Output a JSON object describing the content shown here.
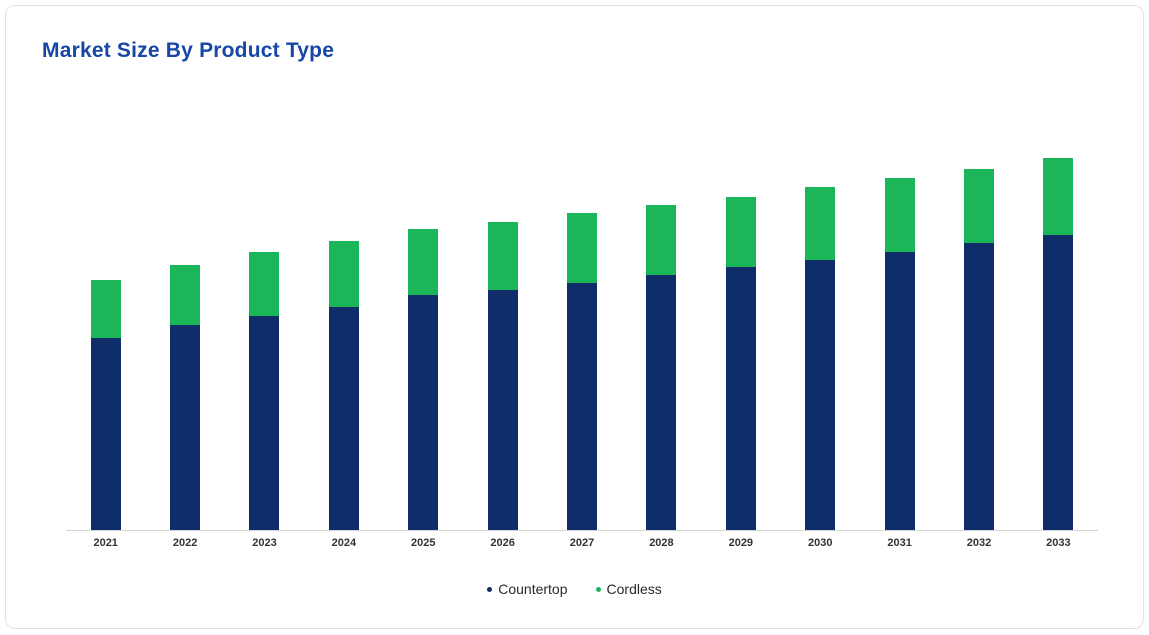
{
  "card": {
    "title": "Market Size By Product Type"
  },
  "colors": {
    "title": "#1747a6",
    "countertop": "#0e2d69",
    "cordless": "#1cb65a",
    "axis_line": "#d4d4d4",
    "tick_label": "#333333"
  },
  "legend": {
    "position": "bottom",
    "items": [
      {
        "label": "Countertop",
        "color": "#0e2d69"
      },
      {
        "label": "Cordless",
        "color": "#1cb65a"
      }
    ]
  },
  "chart_data": {
    "type": "bar",
    "stacked": true,
    "title": "Market Size By Product Type",
    "xlabel": "",
    "ylabel": "",
    "grid": false,
    "legend_position": "bottom",
    "ylim": [
      0,
      4.32
    ],
    "categories": [
      "2021",
      "2022",
      "2023",
      "2024",
      "2025",
      "2026",
      "2027",
      "2028",
      "2029",
      "2030",
      "2031",
      "2032",
      "2033"
    ],
    "series": [
      {
        "name": "Countertop",
        "color": "#0e2d69",
        "values": [
          1.92,
          2.05,
          2.14,
          2.23,
          2.35,
          2.4,
          2.47,
          2.55,
          2.63,
          2.7,
          2.78,
          2.87,
          2.95
        ]
      },
      {
        "name": "Cordless",
        "color": "#1cb65a",
        "values": [
          0.58,
          0.6,
          0.64,
          0.66,
          0.66,
          0.68,
          0.7,
          0.7,
          0.7,
          0.73,
          0.74,
          0.74,
          0.77
        ]
      }
    ]
  }
}
